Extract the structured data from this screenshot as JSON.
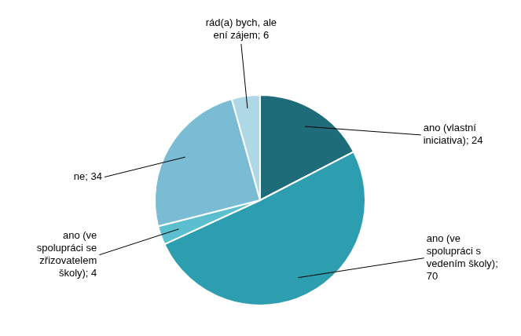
{
  "chart_data": {
    "type": "pie",
    "categories": [
      "ano (vlastní\niniciativa); 24",
      "ano (ve\nspolupráci s\nvedením školy);\n70",
      "ano (ve\nspolupráci se\nzřizovatelem\nškoly); 4",
      "ne; 34",
      "rád(a) bych, ale\není zájem; 6"
    ],
    "values": [
      24,
      70,
      4,
      34,
      6
    ],
    "colors": [
      "#1e6b7a",
      "#2d9db0",
      "#5bbfcf",
      "#7abcd4",
      "#aed8e6"
    ]
  }
}
